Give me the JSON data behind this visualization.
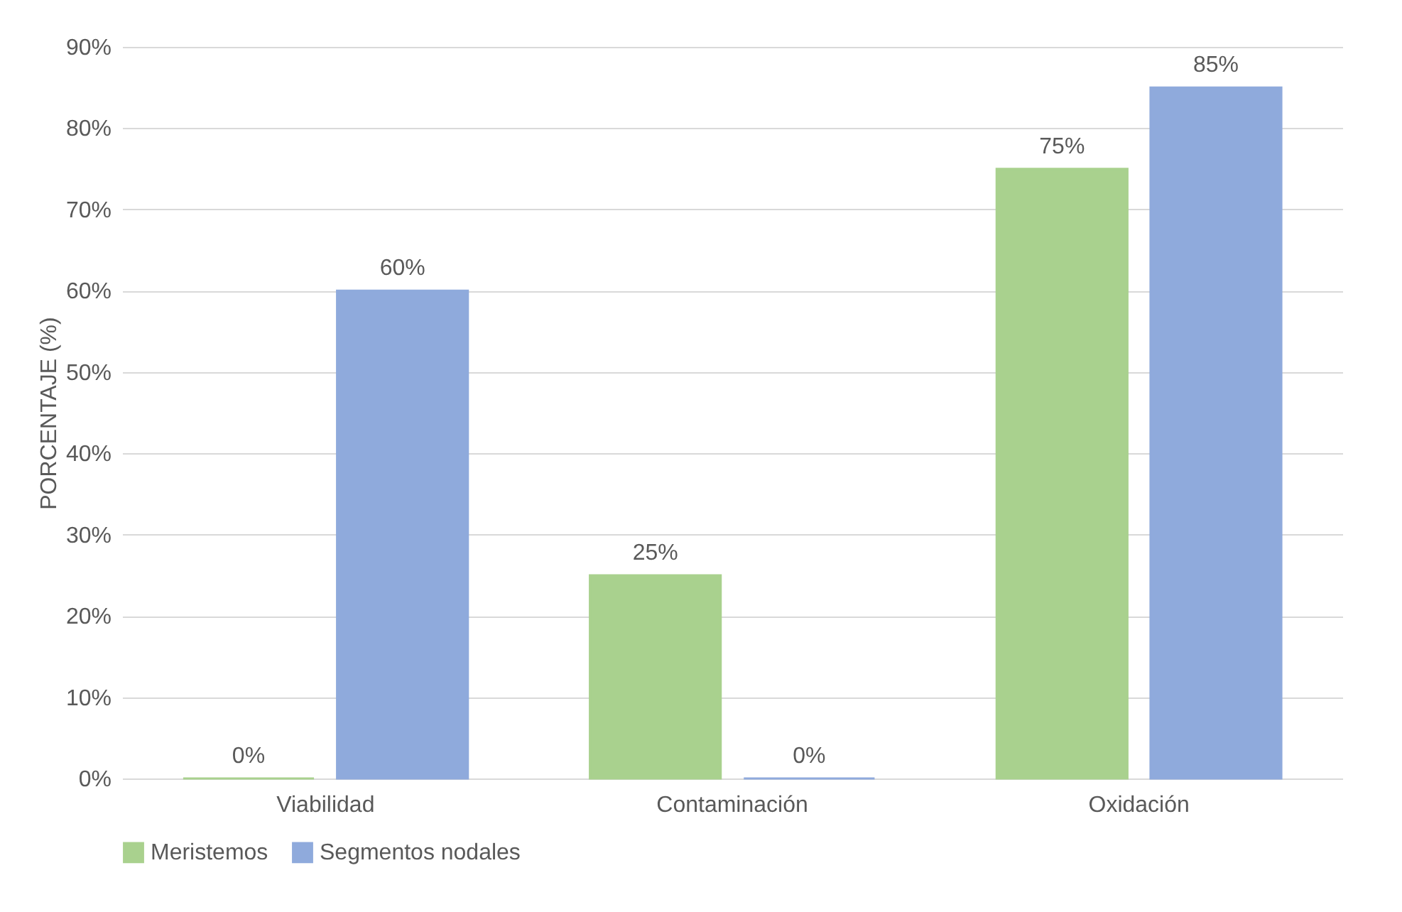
{
  "chart_data": {
    "type": "bar",
    "ylabel": "PORCENTAJE (%)",
    "categories": [
      "Viabilidad",
      "Contaminación",
      "Oxidación"
    ],
    "series": [
      {
        "name": "Meristemos",
        "color": "#a9d18e",
        "values": [
          0,
          25,
          75
        ],
        "value_labels": [
          "0%",
          "25%",
          "75%"
        ]
      },
      {
        "name": "Segmentos nodales",
        "color": "#8faadc",
        "values": [
          60,
          0,
          85
        ],
        "value_labels": [
          "60%",
          "0%",
          "85%"
        ]
      }
    ],
    "ylim": [
      0,
      90
    ],
    "yticks": [
      {
        "value": 0,
        "label": "0%"
      },
      {
        "value": 10,
        "label": "10%"
      },
      {
        "value": 20,
        "label": "20%"
      },
      {
        "value": 30,
        "label": "30%"
      },
      {
        "value": 40,
        "label": "40%"
      },
      {
        "value": 50,
        "label": "50%"
      },
      {
        "value": 60,
        "label": "60%"
      },
      {
        "value": 70,
        "label": "70%"
      },
      {
        "value": 80,
        "label": "80%"
      },
      {
        "value": 90,
        "label": "90%"
      }
    ],
    "grid": "y",
    "legend": "bottom"
  }
}
